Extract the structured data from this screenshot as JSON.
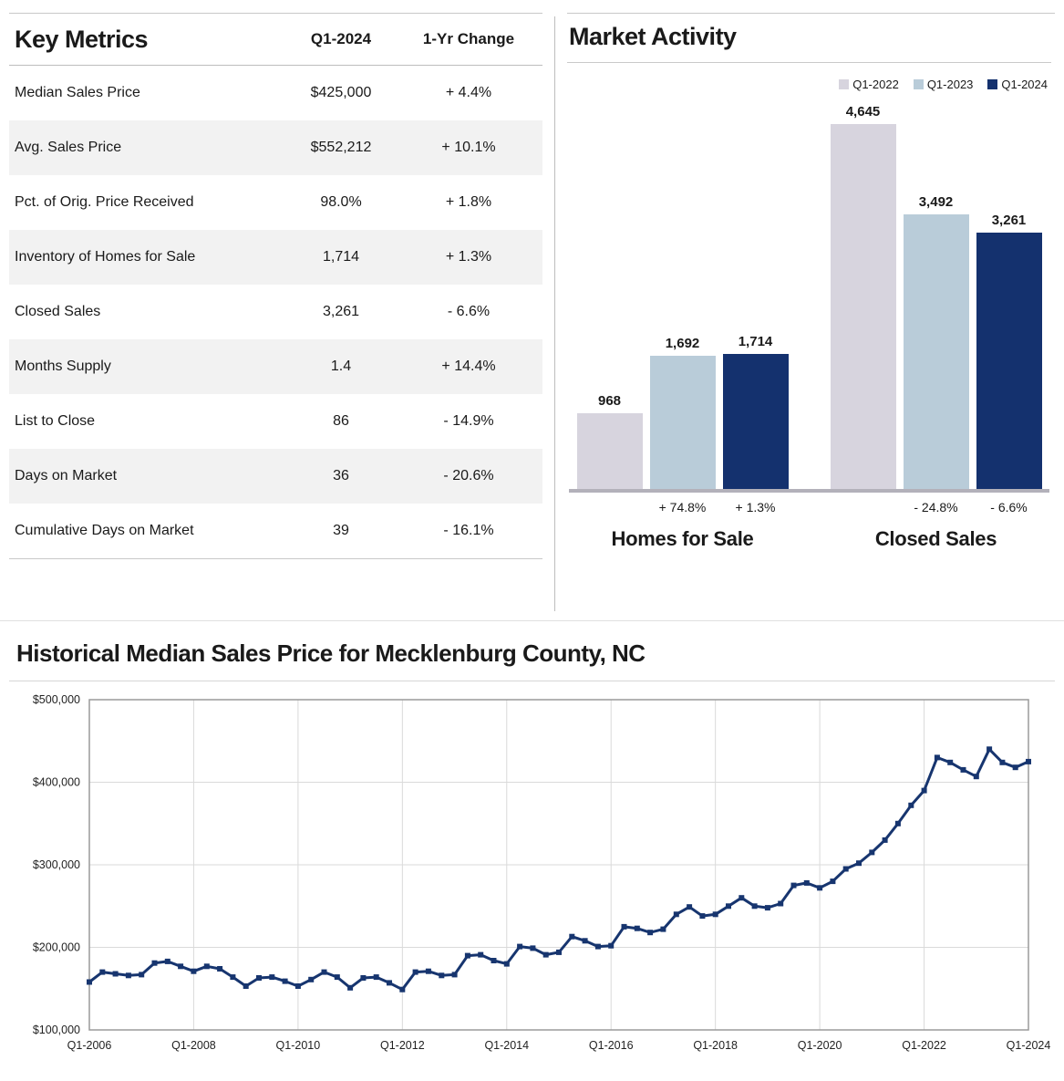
{
  "key_metrics": {
    "title": "Key Metrics",
    "col_value": "Q1-2024",
    "col_change": "1-Yr Change",
    "rows": [
      {
        "label": "Median Sales Price",
        "value": "$425,000",
        "change": "+ 4.4%"
      },
      {
        "label": "Avg. Sales Price",
        "value": "$552,212",
        "change": "+ 10.1%"
      },
      {
        "label": "Pct. of Orig. Price Received",
        "value": "98.0%",
        "change": "+ 1.8%"
      },
      {
        "label": "Inventory of Homes for Sale",
        "value": "1,714",
        "change": "+ 1.3%"
      },
      {
        "label": "Closed Sales",
        "value": "3,261",
        "change": "- 6.6%"
      },
      {
        "label": "Months Supply",
        "value": "1.4",
        "change": "+ 14.4%"
      },
      {
        "label": "List to Close",
        "value": "86",
        "change": "- 14.9%"
      },
      {
        "label": "Days on Market",
        "value": "36",
        "change": "- 20.6%"
      },
      {
        "label": "Cumulative Days on Market",
        "value": "39",
        "change": "- 16.1%"
      }
    ]
  },
  "market_activity": {
    "title": "Market Activity",
    "legend": [
      {
        "label": "Q1-2022",
        "color": "#d7d4de"
      },
      {
        "label": "Q1-2023",
        "color": "#b9ccd9"
      },
      {
        "label": "Q1-2024",
        "color": "#14316e"
      }
    ],
    "groups": [
      {
        "label": "Homes for Sale",
        "bars": [
          {
            "series": "Q1-2022",
            "value_label": "968",
            "pct_label": ""
          },
          {
            "series": "Q1-2023",
            "value_label": "1,692",
            "pct_label": "+ 74.8%"
          },
          {
            "series": "Q1-2024",
            "value_label": "1,714",
            "pct_label": "+ 1.3%"
          }
        ]
      },
      {
        "label": "Closed Sales",
        "bars": [
          {
            "series": "Q1-2022",
            "value_label": "4,645",
            "pct_label": ""
          },
          {
            "series": "Q1-2023",
            "value_label": "3,492",
            "pct_label": "- 24.8%"
          },
          {
            "series": "Q1-2024",
            "value_label": "3,261",
            "pct_label": "- 6.6%"
          }
        ]
      }
    ]
  },
  "chart_data": [
    {
      "type": "bar",
      "title": "Market Activity",
      "categories": [
        "Homes for Sale",
        "Closed Sales"
      ],
      "series": [
        {
          "name": "Q1-2022",
          "values": [
            968,
            4645
          ]
        },
        {
          "name": "Q1-2023",
          "values": [
            1692,
            3492
          ]
        },
        {
          "name": "Q1-2024",
          "values": [
            1714,
            3261
          ]
        }
      ],
      "pct_change_labels": [
        [
          "",
          "+ 74.8%",
          "+ 1.3%"
        ],
        [
          "",
          "- 24.8%",
          "- 6.6%"
        ]
      ],
      "legend_position": "top-right"
    },
    {
      "type": "line",
      "title": "Historical Median Sales Price for Mecklenburg County, NC",
      "x_start": "Q1-2006",
      "x_end": "Q1-2024",
      "frequency": "quarterly",
      "x_ticks": [
        "Q1-2006",
        "Q1-2008",
        "Q1-2010",
        "Q1-2012",
        "Q1-2014",
        "Q1-2016",
        "Q1-2018",
        "Q1-2020",
        "Q1-2022",
        "Q1-2024"
      ],
      "x_tick_step": 8,
      "y_ticks": [
        "$100,000",
        "$200,000",
        "$300,000",
        "$400,000",
        "$500,000"
      ],
      "ylim": [
        100000,
        500000
      ],
      "grid": true,
      "line_color": "#17356f",
      "values": [
        158000,
        170000,
        168000,
        166000,
        167000,
        181000,
        183000,
        177000,
        171000,
        177000,
        174000,
        164000,
        153000,
        163000,
        164000,
        159000,
        153000,
        161000,
        170000,
        164000,
        151000,
        163000,
        164000,
        157000,
        149000,
        170000,
        171000,
        166000,
        167000,
        190000,
        191000,
        184000,
        180000,
        201000,
        199000,
        191000,
        194000,
        213000,
        208000,
        201000,
        202000,
        225000,
        223000,
        218000,
        222000,
        240000,
        249000,
        238000,
        240000,
        250000,
        260000,
        250000,
        248000,
        253000,
        275000,
        278000,
        272000,
        280000,
        295000,
        302000,
        315000,
        330000,
        350000,
        372000,
        390000,
        430000,
        424000,
        415000,
        407000,
        440000,
        424000,
        418000,
        425000
      ]
    }
  ]
}
